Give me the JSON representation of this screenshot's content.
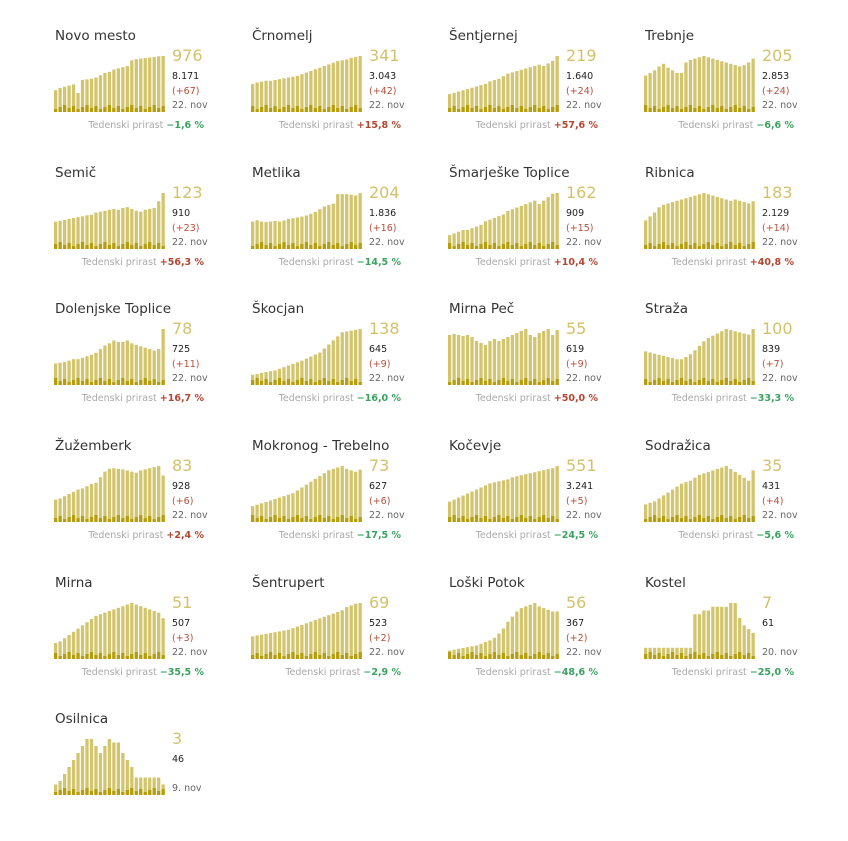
{
  "growth_label": "Tedenski prirast",
  "colors": {
    "bar_light": "#d3c56e",
    "bar_dark": "#b59e0e",
    "number": "#d3c26c",
    "up": "#b24632",
    "down": "#3aa260"
  },
  "chart_data": [
    {
      "type": "bar",
      "title": "Novo mesto",
      "current": "976",
      "total": "8.171",
      "delta": "(+67)",
      "date": "22. nov",
      "growth": "−1,6 %",
      "trend": "down",
      "values": [
        380,
        420,
        440,
        460,
        480,
        330,
        560,
        570,
        580,
        600,
        640,
        680,
        700,
        740,
        760,
        780,
        800,
        900,
        920,
        930,
        940,
        950,
        960,
        970,
        976
      ]
    },
    {
      "type": "bar",
      "title": "Črnomelj",
      "current": "341",
      "total": "3.043",
      "delta": "(+42)",
      "date": "22. nov",
      "growth": "+15,8 %",
      "trend": "up",
      "values": [
        170,
        180,
        185,
        190,
        190,
        195,
        200,
        205,
        210,
        215,
        220,
        230,
        240,
        250,
        260,
        270,
        280,
        290,
        300,
        310,
        315,
        320,
        330,
        335,
        341
      ]
    },
    {
      "type": "bar",
      "title": "Šentjernej",
      "current": "219",
      "total": "1.640",
      "delta": "(+24)",
      "date": "22. nov",
      "growth": "+57,6 %",
      "trend": "up",
      "values": [
        70,
        75,
        80,
        85,
        90,
        95,
        100,
        105,
        110,
        120,
        125,
        130,
        140,
        150,
        155,
        160,
        165,
        170,
        175,
        180,
        185,
        180,
        190,
        200,
        219
      ]
    },
    {
      "type": "bar",
      "title": "Trebnje",
      "current": "205",
      "total": "2.853",
      "delta": "(+24)",
      "date": "22. nov",
      "growth": "−6,6 %",
      "trend": "down",
      "values": [
        140,
        150,
        160,
        175,
        185,
        170,
        160,
        150,
        150,
        190,
        200,
        205,
        210,
        215,
        210,
        205,
        200,
        195,
        190,
        185,
        180,
        175,
        180,
        190,
        205
      ]
    },
    {
      "type": "bar",
      "title": "Semič",
      "current": "123",
      "total": "910",
      "delta": "(+23)",
      "date": "22. nov",
      "growth": "+56,3 %",
      "trend": "up",
      "values": [
        60,
        62,
        64,
        66,
        68,
        70,
        72,
        74,
        75,
        80,
        82,
        84,
        86,
        88,
        86,
        90,
        92,
        88,
        84,
        82,
        86,
        88,
        90,
        105,
        123
      ]
    },
    {
      "type": "bar",
      "title": "Metlika",
      "current": "204",
      "total": "1.836",
      "delta": "(+16)",
      "date": "22. nov",
      "growth": "−14,5 %",
      "trend": "down",
      "values": [
        100,
        105,
        100,
        98,
        100,
        102,
        100,
        104,
        110,
        112,
        115,
        118,
        122,
        128,
        135,
        145,
        155,
        160,
        165,
        200,
        200,
        200,
        198,
        195,
        204
      ]
    },
    {
      "type": "bar",
      "title": "Šmarješke Toplice",
      "current": "162",
      "total": "909",
      "delta": "(+15)",
      "date": "22. nov",
      "growth": "+10,4 %",
      "trend": "up",
      "values": [
        40,
        45,
        50,
        55,
        55,
        60,
        65,
        70,
        80,
        85,
        90,
        95,
        100,
        110,
        115,
        120,
        125,
        130,
        135,
        140,
        130,
        140,
        150,
        160,
        162
      ]
    },
    {
      "type": "bar",
      "title": "Ribnica",
      "current": "183",
      "total": "2.129",
      "delta": "(+14)",
      "date": "22. nov",
      "growth": "+40,8 %",
      "trend": "up",
      "values": [
        110,
        125,
        140,
        160,
        170,
        175,
        180,
        185,
        190,
        195,
        200,
        205,
        210,
        215,
        210,
        205,
        200,
        195,
        190,
        185,
        190,
        185,
        180,
        175,
        183
      ]
    },
    {
      "type": "bar",
      "title": "Dolenjske Toplice",
      "current": "78",
      "total": "725",
      "delta": "(+11)",
      "date": "22. nov",
      "growth": "+16,7 %",
      "trend": "up",
      "values": [
        30,
        31,
        32,
        34,
        36,
        36,
        38,
        40,
        42,
        45,
        50,
        55,
        58,
        62,
        60,
        60,
        62,
        58,
        56,
        54,
        52,
        50,
        48,
        50,
        78
      ]
    },
    {
      "type": "bar",
      "title": "Škocjan",
      "current": "138",
      "total": "645",
      "delta": "(+9)",
      "date": "22. nov",
      "growth": "−16,0 %",
      "trend": "down",
      "values": [
        25,
        27,
        30,
        32,
        34,
        36,
        40,
        44,
        48,
        52,
        56,
        60,
        65,
        70,
        75,
        80,
        90,
        100,
        110,
        120,
        130,
        132,
        134,
        136,
        138
      ]
    },
    {
      "type": "bar",
      "title": "Mirna Peč",
      "current": "55",
      "total": "619",
      "delta": "(+9)",
      "date": "22. nov",
      "growth": "+50,0 %",
      "trend": "up",
      "values": [
        50,
        51,
        50,
        49,
        50,
        48,
        44,
        42,
        40,
        44,
        46,
        44,
        46,
        48,
        50,
        52,
        54,
        56,
        50,
        48,
        52,
        54,
        56,
        50,
        55
      ]
    },
    {
      "type": "bar",
      "title": "Straža",
      "current": "100",
      "total": "839",
      "delta": "(+7)",
      "date": "22. nov",
      "growth": "−33,3 %",
      "trend": "down",
      "values": [
        60,
        58,
        56,
        54,
        52,
        50,
        48,
        46,
        46,
        50,
        55,
        62,
        70,
        78,
        84,
        88,
        92,
        96,
        100,
        98,
        96,
        94,
        92,
        90,
        100
      ]
    },
    {
      "type": "bar",
      "title": "Žužemberk",
      "current": "83",
      "total": "928",
      "delta": "(+6)",
      "date": "22. nov",
      "growth": "+2,4 %",
      "trend": "up",
      "values": [
        40,
        42,
        46,
        50,
        54,
        58,
        60,
        64,
        68,
        70,
        80,
        90,
        95,
        96,
        95,
        94,
        92,
        90,
        88,
        92,
        94,
        96,
        98,
        100,
        83
      ]
    },
    {
      "type": "bar",
      "title": "Mokronog - Trebelno",
      "current": "73",
      "total": "627",
      "delta": "(+6)",
      "date": "22. nov",
      "growth": "−17,5 %",
      "trend": "down",
      "values": [
        22,
        24,
        26,
        28,
        30,
        32,
        34,
        36,
        38,
        40,
        44,
        48,
        52,
        56,
        60,
        64,
        68,
        72,
        74,
        76,
        78,
        74,
        72,
        70,
        73
      ]
    },
    {
      "type": "bar",
      "title": "Kočevje",
      "current": "551",
      "total": "3.241",
      "delta": "(+5)",
      "date": "22. nov",
      "growth": "−24,5 %",
      "trend": "down",
      "values": [
        200,
        220,
        240,
        260,
        280,
        300,
        320,
        340,
        360,
        380,
        390,
        400,
        410,
        420,
        440,
        450,
        460,
        470,
        480,
        490,
        500,
        510,
        520,
        530,
        551
      ]
    },
    {
      "type": "bar",
      "title": "Sodražica",
      "current": "35",
      "total": "431",
      "delta": "(+4)",
      "date": "22. nov",
      "growth": "−5,6 %",
      "trend": "down",
      "values": [
        12,
        13,
        14,
        16,
        18,
        20,
        22,
        24,
        26,
        27,
        28,
        30,
        32,
        33,
        34,
        35,
        36,
        37,
        38,
        36,
        34,
        32,
        30,
        28,
        35
      ]
    },
    {
      "type": "bar",
      "title": "Mirna",
      "current": "51",
      "total": "507",
      "delta": "(+3)",
      "date": "22. nov",
      "growth": "−35,5 %",
      "trend": "down",
      "values": [
        20,
        22,
        26,
        30,
        34,
        38,
        42,
        46,
        50,
        54,
        56,
        58,
        60,
        62,
        64,
        66,
        68,
        70,
        68,
        66,
        64,
        62,
        60,
        58,
        51
      ]
    },
    {
      "type": "bar",
      "title": "Šentrupert",
      "current": "69",
      "total": "523",
      "delta": "(+2)",
      "date": "22. nov",
      "growth": "−2,9 %",
      "trend": "down",
      "values": [
        28,
        29,
        30,
        31,
        32,
        33,
        34,
        35,
        36,
        38,
        40,
        42,
        44,
        46,
        48,
        50,
        52,
        54,
        56,
        58,
        60,
        64,
        66,
        68,
        69
      ]
    },
    {
      "type": "bar",
      "title": "Loški Potok",
      "current": "56",
      "total": "367",
      "delta": "(+2)",
      "date": "22. nov",
      "growth": "−48,6 %",
      "trend": "down",
      "values": [
        10,
        11,
        12,
        13,
        14,
        15,
        16,
        18,
        20,
        22,
        25,
        30,
        36,
        44,
        50,
        56,
        60,
        62,
        64,
        66,
        62,
        60,
        58,
        56,
        56
      ]
    },
    {
      "type": "bar",
      "title": "Kostel",
      "current": "7",
      "total": "61",
      "delta": "",
      "date": "20. nov",
      "growth": "−25,0 %",
      "trend": "down",
      "values": [
        3,
        3,
        3,
        3,
        3,
        3,
        3,
        3,
        3,
        3,
        3,
        12,
        12,
        13,
        13,
        14,
        14,
        14,
        14,
        15,
        15,
        11,
        9,
        8,
        7
      ]
    },
    {
      "type": "bar",
      "title": "Osilnica",
      "current": "3",
      "total": "46",
      "delta": "",
      "date": "9. nov",
      "growth": "",
      "trend": "",
      "values": [
        3,
        4,
        6,
        8,
        10,
        12,
        14,
        16,
        16,
        14,
        12,
        14,
        16,
        15,
        15,
        12,
        10,
        8,
        5,
        5,
        5,
        5,
        5,
        5,
        3
      ]
    }
  ]
}
